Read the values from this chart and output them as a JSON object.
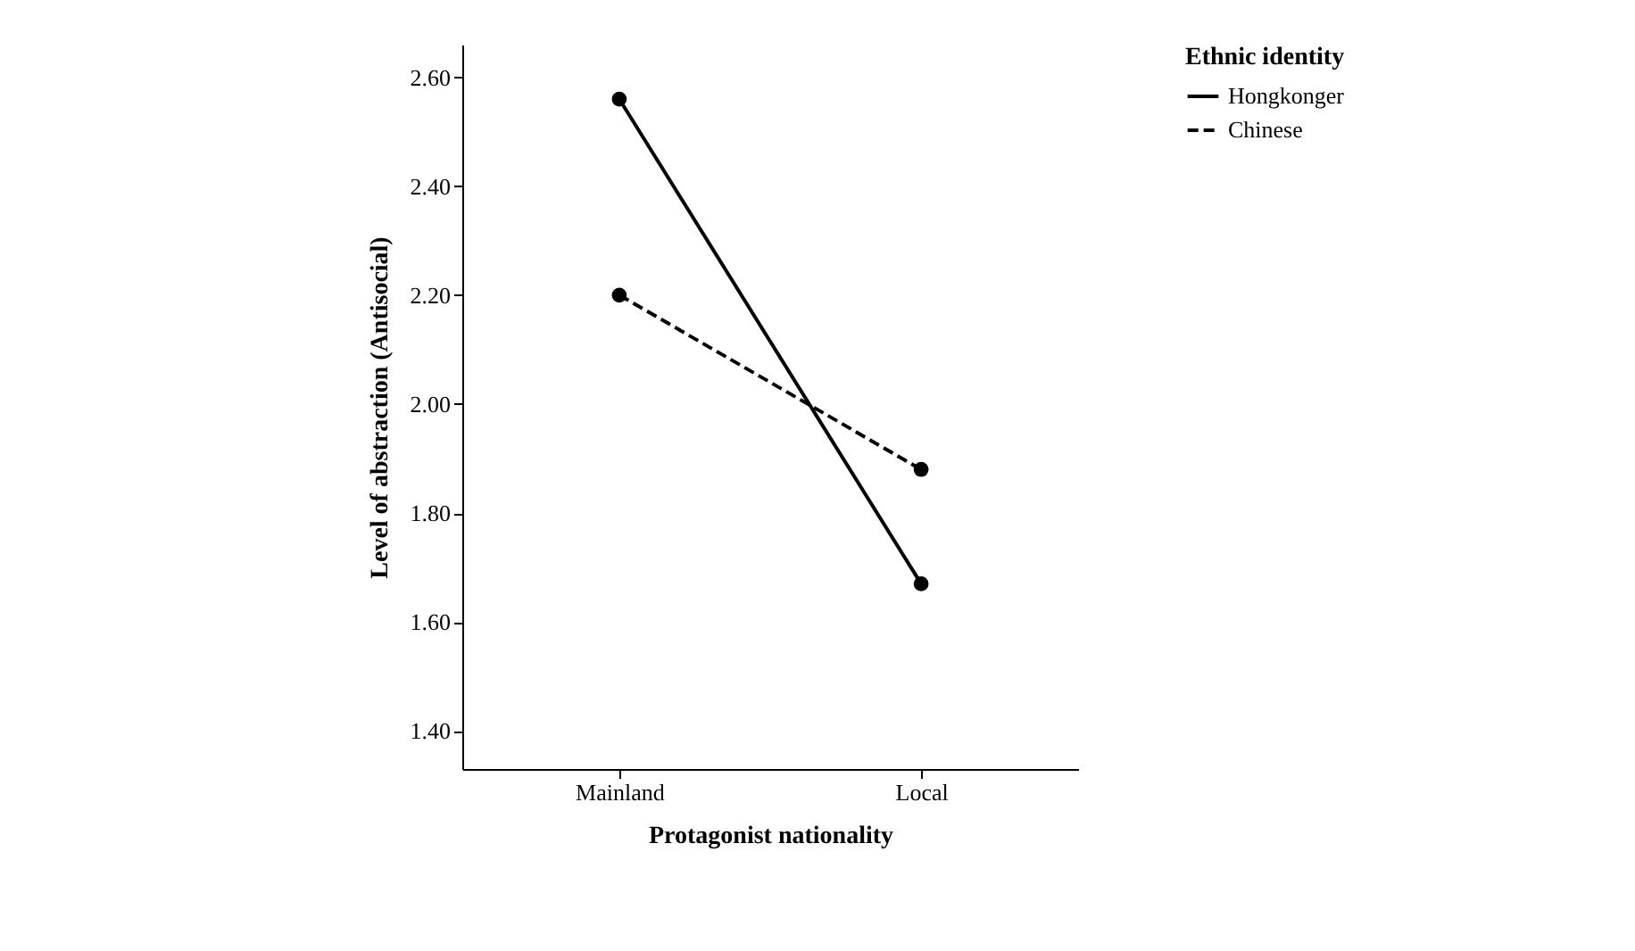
{
  "chart_data": {
    "type": "line",
    "xlabel": "Protagonist nationality",
    "ylabel": "Level of abstraction (Antisocial)",
    "legend_title": "Ethnic identity",
    "categories": [
      "Mainland",
      "Local"
    ],
    "series": [
      {
        "name": "Hongkonger",
        "color": "#000000",
        "line_style": "solid",
        "values": [
          2.56,
          1.67
        ]
      },
      {
        "name": "Chinese",
        "color": "#000000",
        "line_style": "dashed",
        "values": [
          2.2,
          1.88
        ]
      }
    ],
    "ylim": [
      1.33,
      2.66
    ],
    "yticks": [
      {
        "value": 1.4,
        "label": "1.40"
      },
      {
        "value": 1.6,
        "label": "1.60"
      },
      {
        "value": 1.8,
        "label": "1.80"
      },
      {
        "value": 2.0,
        "label": "2.00"
      },
      {
        "value": 2.2,
        "label": "2.20"
      },
      {
        "value": 2.4,
        "label": "2.40"
      },
      {
        "value": 2.6,
        "label": "2.60"
      }
    ],
    "grid": false,
    "legend": "top right",
    "marker": "circle"
  }
}
